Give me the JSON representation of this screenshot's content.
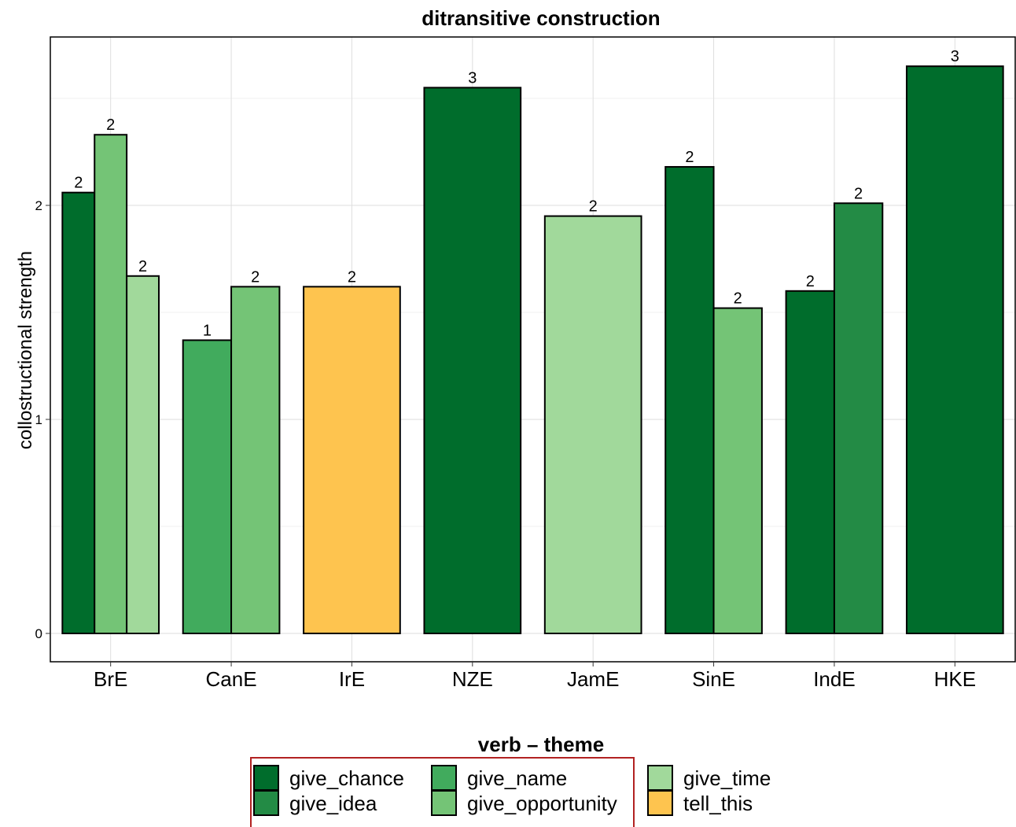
{
  "chart_data": {
    "type": "bar",
    "title": "ditransitive construction",
    "xlabel": "",
    "ylabel": "collostructional strength",
    "ylim": [
      -0.13,
      2.82
    ],
    "yticks": [
      0,
      1,
      2
    ],
    "grid": true,
    "categories": [
      "BrE",
      "CanE",
      "IrE",
      "NZE",
      "JamE",
      "SinE",
      "IndE",
      "HKE"
    ],
    "bars": [
      {
        "category": "BrE",
        "series": "give_chance",
        "value": 2.06,
        "label": "2"
      },
      {
        "category": "BrE",
        "series": "give_opportunity",
        "value": 2.33,
        "label": "2"
      },
      {
        "category": "BrE",
        "series": "give_time",
        "value": 1.67,
        "label": "2"
      },
      {
        "category": "CanE",
        "series": "give_name",
        "value": 1.37,
        "label": "1"
      },
      {
        "category": "CanE",
        "series": "give_opportunity",
        "value": 1.62,
        "label": "2"
      },
      {
        "category": "IrE",
        "series": "tell_this",
        "value": 1.62,
        "label": "2"
      },
      {
        "category": "NZE",
        "series": "give_chance",
        "value": 2.55,
        "label": "3"
      },
      {
        "category": "JamE",
        "series": "give_time",
        "value": 1.95,
        "label": "2"
      },
      {
        "category": "SinE",
        "series": "give_chance",
        "value": 2.18,
        "label": "2"
      },
      {
        "category": "SinE",
        "series": "give_opportunity",
        "value": 1.52,
        "label": "2"
      },
      {
        "category": "IndE",
        "series": "give_chance",
        "value": 1.6,
        "label": "2"
      },
      {
        "category": "IndE",
        "series": "give_idea",
        "value": 2.01,
        "label": "2"
      },
      {
        "category": "HKE",
        "series": "give_chance",
        "value": 2.65,
        "label": "3"
      }
    ],
    "legend": {
      "title": "verb – theme",
      "placement": "bottom",
      "items": [
        {
          "name": "give_chance",
          "color": "#006d2c"
        },
        {
          "name": "give_idea",
          "color": "#238b45"
        },
        {
          "name": "give_name",
          "color": "#41ab5d"
        },
        {
          "name": "give_opportunity",
          "color": "#74c476"
        },
        {
          "name": "give_time",
          "color": "#a1d99b"
        },
        {
          "name": "tell_this",
          "color": "#fec44f"
        }
      ]
    }
  }
}
